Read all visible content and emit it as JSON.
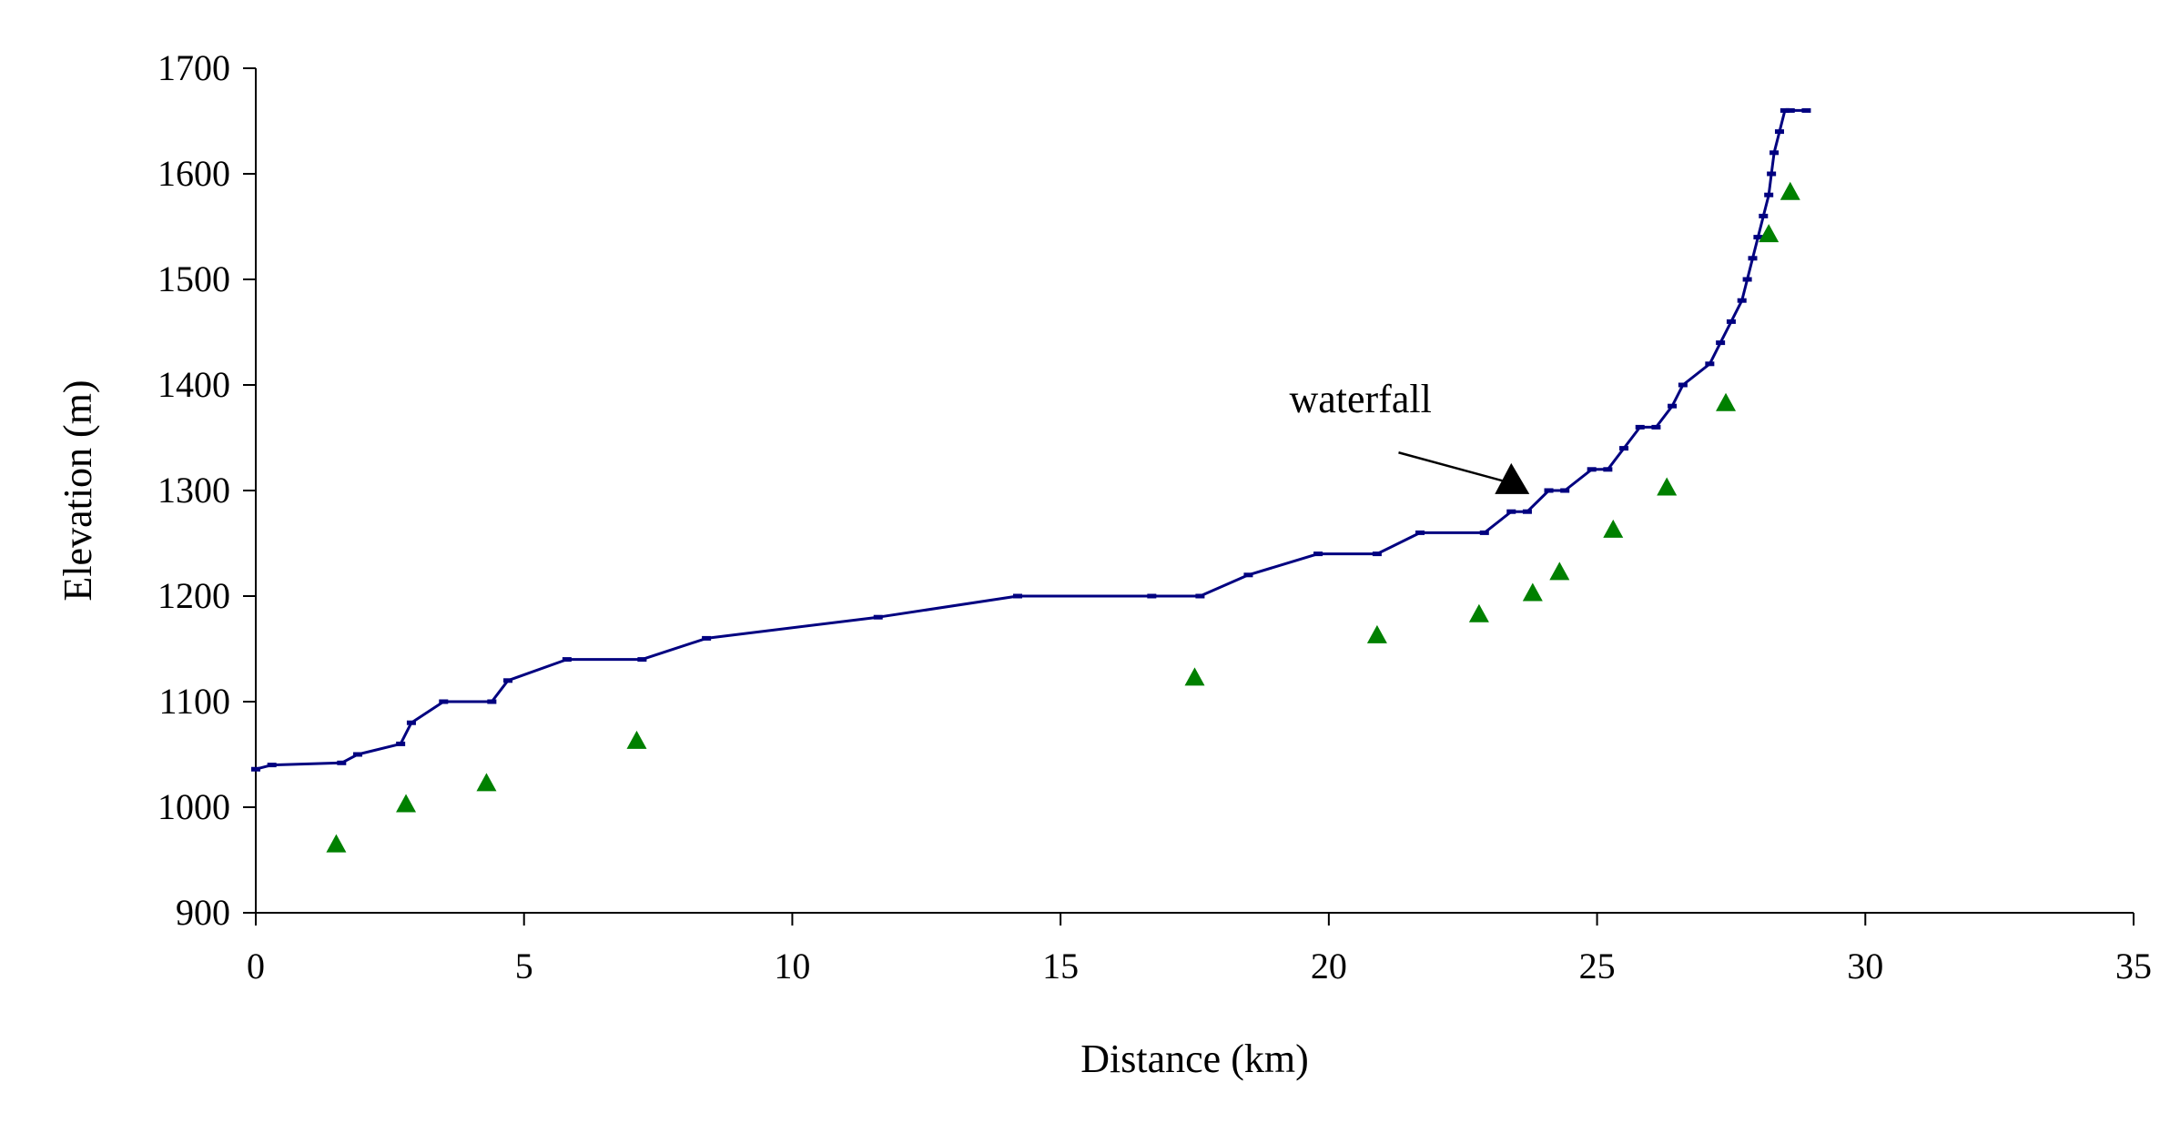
{
  "chart_data": {
    "type": "line",
    "title": "",
    "xlabel": "Distance (km)",
    "ylabel": "Elevation (m)",
    "xlim": [
      0,
      35
    ],
    "ylim": [
      900,
      1700
    ],
    "x_ticks": [
      0,
      5,
      10,
      15,
      20,
      25,
      30,
      35
    ],
    "y_ticks": [
      900,
      1000,
      1100,
      1200,
      1300,
      1400,
      1500,
      1600,
      1700
    ],
    "grid": false,
    "legend": "none",
    "series": [
      {
        "type": "line",
        "color": "#000080",
        "marker": "dash",
        "x": [
          0,
          0.3,
          1.6,
          1.9,
          2.7,
          2.9,
          3.5,
          4.4,
          4.7,
          5.8,
          7.2,
          8.4,
          11.6,
          14.2,
          16.7,
          17.6,
          18.5,
          19.8,
          20.9,
          21.7,
          22.9,
          23.4,
          23.7,
          24.1,
          24.4,
          24.9,
          25.2,
          25.5,
          25.8,
          26.1,
          26.4,
          26.6,
          27.1,
          27.3,
          27.5,
          27.7,
          27.8,
          27.9,
          28.0,
          28.1,
          28.2,
          28.25,
          28.3,
          28.4,
          28.5,
          28.6,
          28.9
        ],
        "y": [
          1036,
          1040,
          1042,
          1050,
          1060,
          1080,
          1100,
          1100,
          1120,
          1140,
          1140,
          1160,
          1180,
          1200,
          1200,
          1200,
          1220,
          1240,
          1240,
          1260,
          1260,
          1280,
          1280,
          1300,
          1300,
          1320,
          1320,
          1340,
          1360,
          1360,
          1380,
          1400,
          1420,
          1440,
          1460,
          1480,
          1500,
          1520,
          1540,
          1560,
          1580,
          1600,
          1620,
          1640,
          1660,
          1660,
          1660
        ]
      },
      {
        "type": "scatter",
        "color": "#008000",
        "marker": "triangle",
        "x": [
          1.5,
          2.8,
          4.3,
          7.1,
          17.5,
          20.9,
          22.8,
          23.8,
          24.3,
          25.3,
          26.3,
          27.4,
          28.2,
          28.6
        ],
        "y": [
          965,
          1003,
          1023,
          1063,
          1123,
          1163,
          1183,
          1203,
          1223,
          1263,
          1303,
          1383,
          1543,
          1583
        ]
      }
    ],
    "annotations": [
      {
        "text": "waterfall",
        "marker": "triangle",
        "marker_color": "#000000",
        "arrow_from": [
          21.3,
          1336
        ],
        "point": [
          23.4,
          1307
        ]
      }
    ]
  }
}
